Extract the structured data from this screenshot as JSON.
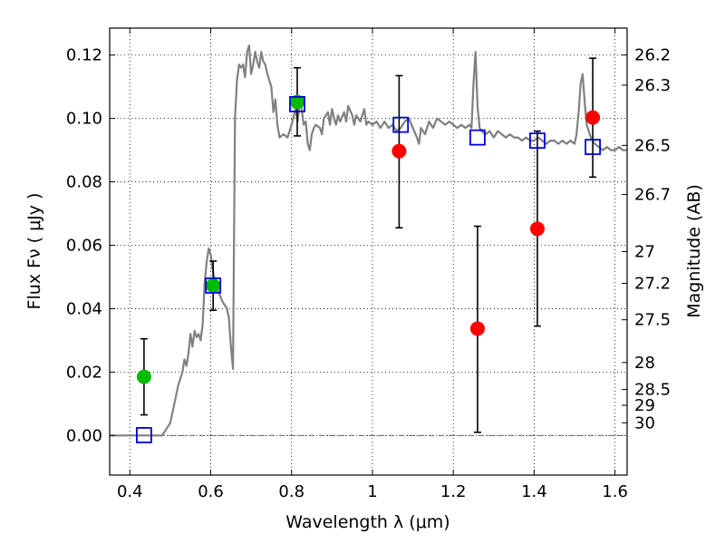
{
  "chart_data": {
    "type": "scatter",
    "xlabel": "Wavelength  λ (μm)",
    "ylabel": "Flux  Fν  ( μJy )",
    "ylabel_right": "Magnitude (AB)",
    "xlim": [
      0.35,
      1.63
    ],
    "ylim": [
      -0.0125,
      0.1285
    ],
    "grid": true,
    "x_ticks": [
      0.4,
      0.6,
      0.8,
      1.0,
      1.2,
      1.4,
      1.6
    ],
    "x_tick_labels": [
      "0.4",
      "0.6",
      "0.8",
      "1",
      "1.2",
      "1.4",
      "1.6"
    ],
    "y_ticks": [
      0.0,
      0.02,
      0.04,
      0.06,
      0.08,
      0.1,
      0.12
    ],
    "y_tick_labels": [
      "0.00",
      "0.02",
      "0.04",
      "0.06",
      "0.08",
      "0.10",
      "0.12"
    ],
    "right_ticks": [
      {
        "flux": 0.12,
        "label": "26.2"
      },
      {
        "flux": 0.1105,
        "label": "26.3"
      },
      {
        "flux": 0.0915,
        "label": "26.5"
      },
      {
        "flux": 0.076,
        "label": "26.7"
      },
      {
        "flux": 0.058,
        "label": "27"
      },
      {
        "flux": 0.048,
        "label": "27.2"
      },
      {
        "flux": 0.0365,
        "label": "27.5"
      },
      {
        "flux": 0.023,
        "label": "28"
      },
      {
        "flux": 0.0145,
        "label": "28.5"
      },
      {
        "flux": 0.0095,
        "label": "29"
      },
      {
        "flux": 0.004,
        "label": "30"
      }
    ],
    "colors": {
      "model": "#808080",
      "detected": "#00bb00",
      "upper": "#ff0000",
      "synthetic": "#0000dd",
      "errorbar": "#000000"
    },
    "series": [
      {
        "kind": "line",
        "points": [
          [
            0.35,
            0.0
          ],
          [
            0.48,
            0.0
          ],
          [
            0.5,
            0.004
          ],
          [
            0.51,
            0.01
          ],
          [
            0.52,
            0.016
          ],
          [
            0.53,
            0.02
          ],
          [
            0.535,
            0.024
          ],
          [
            0.54,
            0.022
          ],
          [
            0.545,
            0.026
          ],
          [
            0.55,
            0.032
          ],
          [
            0.555,
            0.028
          ],
          [
            0.56,
            0.033
          ],
          [
            0.565,
            0.031
          ],
          [
            0.57,
            0.032
          ],
          [
            0.575,
            0.03
          ],
          [
            0.58,
            0.035
          ],
          [
            0.585,
            0.048
          ],
          [
            0.59,
            0.055
          ],
          [
            0.595,
            0.059
          ],
          [
            0.6,
            0.057
          ],
          [
            0.605,
            0.052
          ],
          [
            0.61,
            0.049
          ],
          [
            0.615,
            0.047
          ],
          [
            0.62,
            0.045
          ],
          [
            0.63,
            0.042
          ],
          [
            0.64,
            0.04
          ],
          [
            0.645,
            0.037
          ],
          [
            0.65,
            0.028
          ],
          [
            0.655,
            0.021
          ],
          [
            0.66,
            0.1
          ],
          [
            0.665,
            0.112
          ],
          [
            0.67,
            0.117
          ],
          [
            0.675,
            0.116
          ],
          [
            0.68,
            0.117
          ],
          [
            0.685,
            0.113
          ],
          [
            0.69,
            0.121
          ],
          [
            0.695,
            0.123
          ],
          [
            0.7,
            0.114
          ],
          [
            0.705,
            0.117
          ],
          [
            0.71,
            0.121
          ],
          [
            0.715,
            0.118
          ],
          [
            0.72,
            0.116
          ],
          [
            0.725,
            0.121
          ],
          [
            0.73,
            0.118
          ],
          [
            0.735,
            0.117
          ],
          [
            0.74,
            0.114
          ],
          [
            0.745,
            0.112
          ],
          [
            0.75,
            0.11
          ],
          [
            0.755,
            0.102
          ],
          [
            0.76,
            0.106
          ],
          [
            0.765,
            0.098
          ],
          [
            0.77,
            0.094
          ],
          [
            0.78,
            0.095
          ],
          [
            0.79,
            0.094
          ],
          [
            0.8,
            0.098
          ],
          [
            0.81,
            0.103
          ],
          [
            0.815,
            0.099
          ],
          [
            0.82,
            0.105
          ],
          [
            0.825,
            0.103
          ],
          [
            0.83,
            0.098
          ],
          [
            0.835,
            0.099
          ],
          [
            0.84,
            0.092
          ],
          [
            0.845,
            0.09
          ],
          [
            0.85,
            0.095
          ],
          [
            0.855,
            0.097
          ],
          [
            0.86,
            0.098
          ],
          [
            0.87,
            0.097
          ],
          [
            0.875,
            0.095
          ],
          [
            0.88,
            0.1
          ],
          [
            0.89,
            0.102
          ],
          [
            0.895,
            0.098
          ],
          [
            0.9,
            0.103
          ],
          [
            0.905,
            0.1
          ],
          [
            0.91,
            0.098
          ],
          [
            0.915,
            0.101
          ],
          [
            0.92,
            0.099
          ],
          [
            0.93,
            0.102
          ],
          [
            0.935,
            0.099
          ],
          [
            0.94,
            0.104
          ],
          [
            0.95,
            0.101
          ],
          [
            0.955,
            0.098
          ],
          [
            0.96,
            0.101
          ],
          [
            0.97,
            0.099
          ],
          [
            0.98,
            0.103
          ],
          [
            0.985,
            0.098
          ],
          [
            0.99,
            0.099
          ],
          [
            1.0,
            0.098
          ],
          [
            1.01,
            0.099
          ],
          [
            1.02,
            0.097
          ],
          [
            1.03,
            0.099
          ],
          [
            1.04,
            0.097
          ],
          [
            1.05,
            0.098
          ],
          [
            1.06,
            0.096
          ],
          [
            1.07,
            0.097
          ],
          [
            1.08,
            0.099
          ],
          [
            1.09,
            0.1
          ],
          [
            1.1,
            0.097
          ],
          [
            1.11,
            0.094
          ],
          [
            1.115,
            0.092
          ],
          [
            1.12,
            0.097
          ],
          [
            1.13,
            0.095
          ],
          [
            1.14,
            0.099
          ],
          [
            1.15,
            0.097
          ],
          [
            1.16,
            0.1
          ],
          [
            1.17,
            0.099
          ],
          [
            1.18,
            0.098
          ],
          [
            1.19,
            0.099
          ],
          [
            1.2,
            0.098
          ],
          [
            1.21,
            0.097
          ],
          [
            1.22,
            0.098
          ],
          [
            1.23,
            0.097
          ],
          [
            1.24,
            0.098
          ],
          [
            1.245,
            0.097
          ],
          [
            1.25,
            0.111
          ],
          [
            1.255,
            0.121
          ],
          [
            1.26,
            0.104
          ],
          [
            1.265,
            0.097
          ],
          [
            1.27,
            0.096
          ],
          [
            1.28,
            0.095
          ],
          [
            1.29,
            0.096
          ],
          [
            1.3,
            0.094
          ],
          [
            1.31,
            0.096
          ],
          [
            1.32,
            0.095
          ],
          [
            1.33,
            0.094
          ],
          [
            1.34,
            0.095
          ],
          [
            1.35,
            0.094
          ],
          [
            1.36,
            0.094
          ],
          [
            1.37,
            0.093
          ],
          [
            1.38,
            0.094
          ],
          [
            1.39,
            0.093
          ],
          [
            1.4,
            0.093
          ],
          [
            1.41,
            0.094
          ],
          [
            1.42,
            0.093
          ],
          [
            1.43,
            0.092
          ],
          [
            1.44,
            0.093
          ],
          [
            1.45,
            0.093
          ],
          [
            1.46,
            0.092
          ],
          [
            1.47,
            0.093
          ],
          [
            1.48,
            0.092
          ],
          [
            1.49,
            0.093
          ],
          [
            1.5,
            0.092
          ],
          [
            1.505,
            0.095
          ],
          [
            1.51,
            0.102
          ],
          [
            1.515,
            0.111
          ],
          [
            1.52,
            0.114
          ],
          [
            1.525,
            0.105
          ],
          [
            1.53,
            0.098
          ],
          [
            1.54,
            0.094
          ],
          [
            1.55,
            0.092
          ],
          [
            1.56,
            0.091
          ],
          [
            1.57,
            0.09
          ],
          [
            1.58,
            0.091
          ],
          [
            1.59,
            0.09
          ],
          [
            1.6,
            0.09
          ],
          [
            1.61,
            0.091
          ],
          [
            1.62,
            0.09
          ],
          [
            1.63,
            0.09
          ]
        ]
      },
      {
        "kind": "points-detected",
        "points": [
          {
            "x": 0.435,
            "y": 0.0185,
            "yerr_low": 0.0065,
            "yerr_high": 0.0305
          },
          {
            "x": 0.606,
            "y": 0.0473,
            "yerr_low": 0.0395,
            "yerr_high": 0.055
          },
          {
            "x": 0.814,
            "y": 0.1052,
            "yerr_low": 0.0945,
            "yerr_high": 0.116
          }
        ]
      },
      {
        "kind": "points-upper",
        "points": [
          {
            "x": 1.066,
            "y": 0.0897,
            "yerr_low": 0.0655,
            "yerr_high": 0.1135
          },
          {
            "x": 1.26,
            "y": 0.0337,
            "yerr_low": 0.001,
            "yerr_high": 0.066
          },
          {
            "x": 1.408,
            "y": 0.0652,
            "yerr_low": 0.0345,
            "yerr_high": 0.096
          },
          {
            "x": 1.545,
            "y": 0.1003,
            "yerr_low": 0.0815,
            "yerr_high": 0.119
          }
        ]
      },
      {
        "kind": "synthetic",
        "points": [
          {
            "x": 0.435,
            "y": 0.0001
          },
          {
            "x": 0.606,
            "y": 0.0473
          },
          {
            "x": 0.814,
            "y": 0.1045
          },
          {
            "x": 1.07,
            "y": 0.098
          },
          {
            "x": 1.26,
            "y": 0.094
          },
          {
            "x": 1.408,
            "y": 0.093
          },
          {
            "x": 1.545,
            "y": 0.091
          }
        ]
      }
    ]
  }
}
